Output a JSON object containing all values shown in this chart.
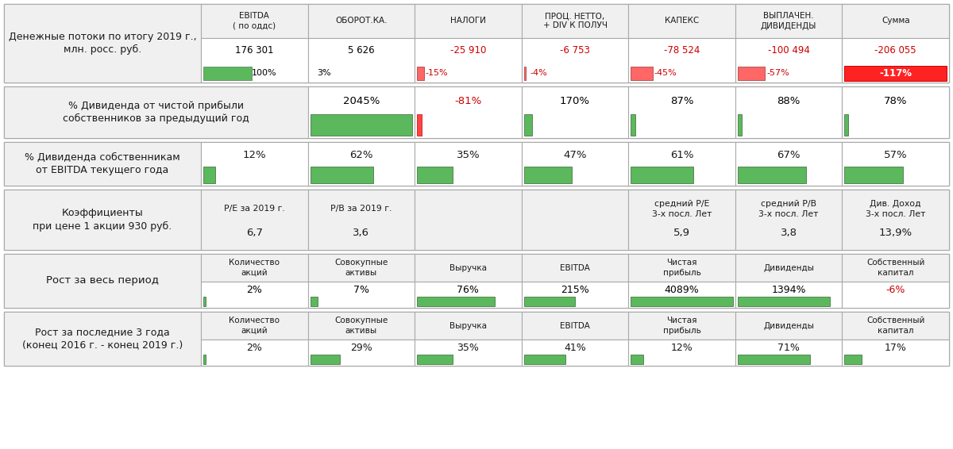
{
  "row1_label": "Денежные потоки по итогу 2019 г.,\nмлн. росс. руб.",
  "row1_col_headers": [
    "EBITDA\n( по оддс)",
    "ОБОРОТ.КА.",
    "НАЛОГИ",
    "ПРОЦ. НЕТТО,\n+ DIV К ПОЛУЧ",
    "КАПЕКС",
    "ВЫПЛАЧЕН.\nДИВИДЕНДЫ",
    "Сумма"
  ],
  "row1_values": [
    "176 301",
    "5 626",
    "-25 910",
    "-6 753",
    "-78 524",
    "-100 494",
    "-206 055"
  ],
  "row1_pct": [
    "100%",
    "3%",
    "-15%",
    "-4%",
    "-45%",
    "-57%",
    "-117%"
  ],
  "row1_value_colors": [
    "#000000",
    "#000000",
    "#cc0000",
    "#cc0000",
    "#cc0000",
    "#cc0000",
    "#cc0000"
  ],
  "row1_bar_pcts": [
    1.0,
    0.03,
    0.15,
    0.04,
    0.45,
    0.57,
    1.17
  ],
  "row1_bar_colors": [
    "#5cb85c",
    "#ffffff",
    "#ff6666",
    "#ff6666",
    "#ff6666",
    "#ff6666",
    "#ffffff"
  ],
  "row1_pct_is_neg": [
    false,
    false,
    true,
    true,
    true,
    true,
    true
  ],
  "row1_last_bg": "#ff2222",
  "row2_label": "% Дивиденда от чистой прибыли\nсобственников за предыдущий год",
  "row2_values": [
    "2045%",
    "-81%",
    "170%",
    "87%",
    "88%",
    "78%"
  ],
  "row2_bar_pcts": [
    1.0,
    0.05,
    0.083,
    0.043,
    0.043,
    0.038
  ],
  "row2_bar_colors": [
    "#5cb85c",
    "#ff4444",
    "#5cb85c",
    "#5cb85c",
    "#5cb85c",
    "#5cb85c"
  ],
  "row2_value_colors": [
    "#000000",
    "#cc0000",
    "#000000",
    "#000000",
    "#000000",
    "#000000"
  ],
  "row3_label": "% Дивиденда собственникам\nот EBITDA текущего года",
  "row3_values": [
    "12%",
    "62%",
    "35%",
    "47%",
    "61%",
    "67%",
    "57%"
  ],
  "row3_bar_pcts": [
    0.12,
    0.62,
    0.35,
    0.47,
    0.61,
    0.67,
    0.57
  ],
  "row4_label": "Коэффициенты\nпри цене 1 акции 930 руб.",
  "row4_cols": [
    {
      "header": "P/E за 2019 г.",
      "val": "6,7",
      "span": 1
    },
    {
      "header": "P/B за 2019 г.",
      "val": "3,6",
      "span": 1
    },
    {
      "header": "",
      "val": "",
      "span": 2
    },
    {
      "header": "средний Р/Е\n3-х посл. Лет",
      "val": "5,9",
      "span": 1
    },
    {
      "header": "средний Р/В\n3-х посл. Лет",
      "val": "3,8",
      "span": 1
    },
    {
      "header": "Див. Доход\n3-х посл. Лет",
      "val": "13,9%",
      "span": 1
    }
  ],
  "row5_label": "Рост за весь период",
  "row56_col_headers": [
    "Количество\nакций",
    "Совокупные\nактивы",
    "Выручка",
    "EBITDA",
    "Чистая\nприбыль",
    "Дивиденды",
    "Собственный\nкапитал"
  ],
  "row5_values": [
    "2%",
    "7%",
    "76%",
    "215%",
    "4089%",
    "1394%",
    "-6%"
  ],
  "row5_bar_pcts": [
    0.02,
    0.07,
    0.76,
    0.5,
    1.0,
    0.9,
    0.0
  ],
  "row5_bar_colors": [
    "#5cb85c",
    "#5cb85c",
    "#5cb85c",
    "#5cb85c",
    "#5cb85c",
    "#5cb85c",
    "#ffffff"
  ],
  "row5_value_colors": [
    "#000000",
    "#000000",
    "#000000",
    "#000000",
    "#000000",
    "#000000",
    "#cc0000"
  ],
  "row5_show_bar": [
    true,
    true,
    true,
    true,
    true,
    true,
    false
  ],
  "row6_label": "Рост за последние 3 года\n(конец 2016 г. - конец 2019 г.)",
  "row6_values": [
    "2%",
    "29%",
    "35%",
    "41%",
    "12%",
    "71%",
    "17%"
  ],
  "row6_bar_pcts": [
    0.02,
    0.29,
    0.35,
    0.41,
    0.12,
    0.71,
    0.17
  ],
  "row6_bar_colors": [
    "#5cb85c",
    "#5cb85c",
    "#5cb85c",
    "#5cb85c",
    "#5cb85c",
    "#5cb85c",
    "#5cb85c"
  ],
  "gray_bg": "#f0f0f0",
  "white_bg": "#ffffff",
  "border_col": "#aaaaaa",
  "green": "#5cb85c",
  "red": "#ff4444"
}
